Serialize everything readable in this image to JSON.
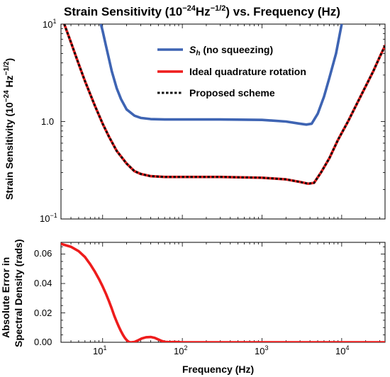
{
  "figure": {
    "title_main": "Strain Sensitivity (10",
    "title_exp": "−24",
    "title_unit_base": "Hz",
    "title_unit_exp": "−1/2",
    "title_tail": ")  vs. Frequency (Hz)",
    "top_ylabel_main": "Strain Sensitivity (10",
    "top_ylabel_exp1": "−24",
    "top_ylabel_unit": " Hz",
    "top_ylabel_exp2": "−1/2",
    "top_ylabel_close": ")",
    "bottom_ylabel_line1": "Absolute Error in",
    "bottom_ylabel_line2": "Spectral Density (rads)",
    "xlabel": "Frequency (Hz)"
  },
  "legend": {
    "sh_symbol": "S",
    "sh_sub": "h",
    "sh_rest": " (no squeezing)",
    "ideal": "Ideal quadrature rotation",
    "proposed": "Proposed scheme"
  },
  "ticks": {
    "top_y": [
      "10",
      "1.0",
      "10"
    ],
    "top_y_exp": [
      "1",
      "",
      "−1"
    ],
    "bottom_y": [
      "0.00",
      "0.02",
      "0.04",
      "0.06"
    ],
    "x_base": [
      "10",
      "10",
      "10",
      "10"
    ],
    "x_exp": [
      "1",
      "2",
      "3",
      "4"
    ]
  },
  "colors": {
    "sh": "#3E64B3",
    "ideal": "#EE1C1C",
    "proposed": "#111111"
  },
  "chart_data": [
    {
      "type": "line",
      "title": "Strain Sensitivity (10^-24 Hz^-1/2) vs. Frequency (Hz)",
      "ylabel": "Strain Sensitivity (10^-24 Hz^-1/2)",
      "xlabel": "",
      "xscale": "log",
      "yscale": "log",
      "xlim": [
        3,
        35000
      ],
      "ylim": [
        0.1,
        10
      ],
      "legend_position": "top-center",
      "series": [
        {
          "name": "S_h (no squeezing)",
          "x": [
            9.5,
            10,
            11,
            12,
            13,
            15,
            17,
            20,
            25,
            30,
            40,
            60,
            100,
            300,
            1000,
            2000,
            3000,
            3600,
            4200,
            5000,
            6000,
            7000,
            8500,
            10000
          ],
          "y": [
            10.0,
            8.5,
            6.0,
            4.4,
            3.3,
            2.2,
            1.7,
            1.33,
            1.15,
            1.09,
            1.06,
            1.05,
            1.05,
            1.05,
            1.04,
            1.0,
            0.95,
            0.93,
            0.95,
            1.2,
            1.8,
            2.8,
            5.0,
            10.0
          ]
        },
        {
          "name": "Ideal quadrature rotation",
          "x": [
            3.3,
            4,
            5,
            6,
            7,
            8,
            10,
            12,
            15,
            20,
            25,
            30,
            40,
            60,
            100,
            300,
            1000,
            2000,
            3000,
            3800,
            4500,
            5500,
            7000,
            9000,
            12000,
            16000,
            20000,
            25000,
            30000,
            35000
          ],
          "y": [
            10.0,
            6.5,
            3.9,
            2.6,
            1.9,
            1.45,
            0.95,
            0.7,
            0.5,
            0.37,
            0.31,
            0.29,
            0.275,
            0.27,
            0.27,
            0.27,
            0.265,
            0.255,
            0.24,
            0.23,
            0.235,
            0.3,
            0.42,
            0.65,
            1.0,
            1.6,
            2.3,
            3.3,
            4.6,
            6.0
          ]
        },
        {
          "name": "Proposed scheme",
          "x": [
            3.3,
            4,
            5,
            6,
            7,
            8,
            10,
            12,
            15,
            20,
            25,
            30,
            40,
            60,
            100,
            300,
            1000,
            2000,
            3000,
            3800,
            4500,
            5500,
            7000,
            9000,
            12000,
            16000,
            20000,
            25000,
            30000,
            35000
          ],
          "y": [
            10.0,
            6.5,
            3.9,
            2.6,
            1.9,
            1.45,
            0.95,
            0.7,
            0.5,
            0.37,
            0.31,
            0.29,
            0.275,
            0.27,
            0.27,
            0.27,
            0.265,
            0.255,
            0.24,
            0.23,
            0.235,
            0.3,
            0.42,
            0.65,
            1.0,
            1.6,
            2.3,
            3.3,
            4.6,
            6.0
          ]
        }
      ]
    },
    {
      "type": "line",
      "ylabel": "Absolute Error in Spectral Density (rads)",
      "xlabel": "Frequency (Hz)",
      "xscale": "log",
      "yscale": "linear",
      "xlim": [
        3,
        35000
      ],
      "ylim": [
        0,
        0.068
      ],
      "series": [
        {
          "x": [
            3,
            4,
            5,
            6,
            7,
            8,
            9,
            10,
            11,
            12,
            13,
            14,
            15,
            16,
            17,
            18,
            19,
            20,
            21,
            22,
            23,
            25,
            28,
            31,
            35,
            40,
            45,
            50,
            55,
            60,
            70,
            80,
            100,
            200,
            1000,
            35000
          ],
          "y": [
            0.067,
            0.065,
            0.062,
            0.058,
            0.053,
            0.048,
            0.043,
            0.038,
            0.033,
            0.028,
            0.023,
            0.018,
            0.014,
            0.0105,
            0.0075,
            0.005,
            0.003,
            0.0015,
            0.0005,
            0.0,
            0.0,
            0.0002,
            0.0014,
            0.0026,
            0.0034,
            0.0036,
            0.003,
            0.0019,
            0.0009,
            0.0003,
            0.0001,
            0.0002,
            0.0,
            0.0,
            0.0,
            0.0
          ]
        }
      ]
    }
  ]
}
